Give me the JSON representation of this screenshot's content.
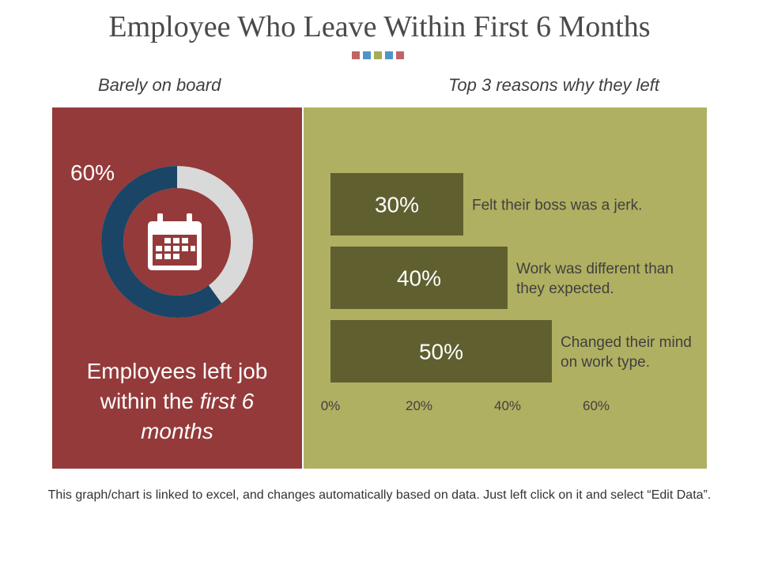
{
  "title": "Employee Who Leave Within First 6 Months",
  "colors": {
    "left_panel": "#943a3a",
    "right_panel": "#b0b062",
    "bar": "#5f5f30",
    "donut_filled": "#1a4566",
    "donut_remaining": "#d9d9d9",
    "dots": [
      "#c06565",
      "#4f95c9",
      "#a4ad56",
      "#4f95c9",
      "#c06565"
    ]
  },
  "left": {
    "subtitle": "Barely on board",
    "percent_label": "60%",
    "percent_value": 60,
    "icon": "calendar-icon",
    "caption_line1": "Employees left  job",
    "caption_line2_plain": "within the ",
    "caption_line2_italic": "first 6",
    "caption_line3_italic": "months"
  },
  "right": {
    "subtitle": "Top 3 reasons why they left"
  },
  "chart_data": {
    "type": "bar",
    "orientation": "horizontal",
    "categories": [
      "Felt their boss was a jerk.",
      "Work was different than they expected.",
      "Changed their mind on work type."
    ],
    "category_lines": [
      [
        "Felt their boss was a jerk."
      ],
      [
        "Work was different than",
        "they expected."
      ],
      [
        "Changed their mind",
        "on work type."
      ]
    ],
    "values": [
      30,
      40,
      50
    ],
    "data_labels": [
      "30%",
      "40%",
      "50%"
    ],
    "xlim": [
      0,
      60
    ],
    "xticks": [
      0,
      20,
      40,
      60
    ],
    "xtick_labels": [
      "0%",
      "20%",
      "40%",
      "60%"
    ],
    "grid": false
  },
  "footnote": "This graph/chart is linked to excel, and changes automatically based on data. Just left click on it and select “Edit Data”."
}
